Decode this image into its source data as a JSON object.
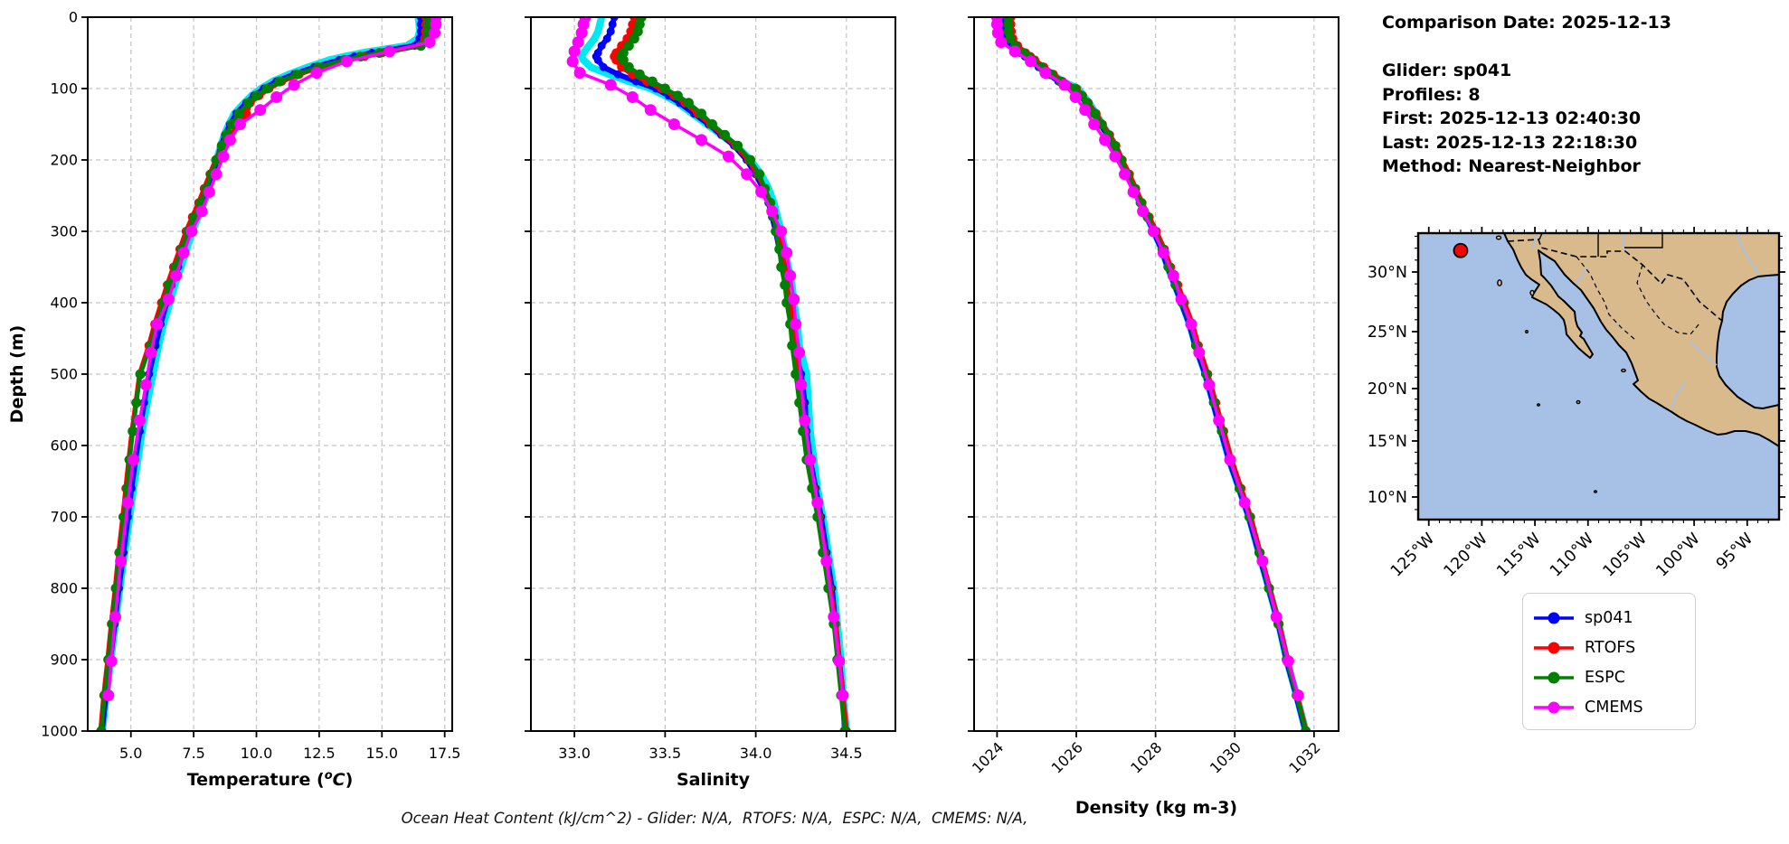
{
  "info": {
    "lines": [
      "Comparison Date: 2025-12-13",
      "",
      "Glider: sp041",
      "Profiles: 8",
      "First: 2025-12-13 02:40:30",
      "Last: 2025-12-13 22:18:30",
      "Method: Nearest-Neighbor"
    ]
  },
  "footer": {
    "text": "Ocean Heat Content (kJ/cm^2) - Glider: N/A,  RTOFS: N/A,  ESPC: N/A,  CMEMS: N/A,"
  },
  "map": {
    "ocean_color": "#a6c1e5",
    "land_color": "#d9ba8c",
    "river_color": "#a6c1e5",
    "lat_ticks": [
      {
        "value": 30,
        "label": "30°N"
      },
      {
        "value": 25,
        "label": "25°N"
      },
      {
        "value": 20,
        "label": "20°N"
      },
      {
        "value": 15,
        "label": "15°N"
      },
      {
        "value": 10,
        "label": "10°N"
      }
    ],
    "lon_ticks": [
      {
        "value": -125,
        "label": "125°W"
      },
      {
        "value": -120,
        "label": "120°W"
      },
      {
        "value": -115,
        "label": "115°W"
      },
      {
        "value": -110,
        "label": "110°W"
      },
      {
        "value": -105,
        "label": "105°W"
      },
      {
        "value": -100,
        "label": "100°W"
      },
      {
        "value": -95,
        "label": "95°W"
      }
    ],
    "extent": {
      "lon_min": -126,
      "lon_max": -92,
      "lat_max": 33.26,
      "lat_min": 8.2
    },
    "marker": {
      "lon": -122.0,
      "lat": 31.8,
      "color": "#ff0000"
    }
  },
  "chart_data": {
    "type": "line",
    "ylabel": "Depth (m)",
    "ylim": [
      0,
      1000
    ],
    "yticks": [
      0,
      100,
      200,
      300,
      400,
      500,
      600,
      700,
      800,
      900,
      1000
    ],
    "grid": true,
    "depths": [
      0,
      10,
      20,
      30,
      40,
      50,
      55,
      60,
      70,
      80,
      90,
      100,
      110,
      120,
      135,
      150,
      165,
      180,
      200,
      220,
      240,
      260,
      280,
      300,
      325,
      350,
      375,
      400,
      430,
      460,
      500,
      540,
      580,
      620,
      660,
      700,
      750,
      800,
      850,
      900,
      950,
      1000
    ],
    "panels": [
      {
        "key": "temperature",
        "xlabel": "Temperature (oC)",
        "xlabel_sup": true,
        "xlim": [
          3.28,
          17.8
        ],
        "xticks": [
          5.0,
          7.5,
          10.0,
          12.5,
          15.0,
          17.5
        ],
        "xtick_labels": [
          "5.0",
          "7.5",
          "10.0",
          "12.5",
          "15.0",
          "17.5"
        ],
        "rotate_ticks": false
      },
      {
        "key": "salinity",
        "xlabel": "Salinity",
        "xlabel_sup": false,
        "xlim": [
          32.76,
          34.77
        ],
        "xticks": [
          33.0,
          33.5,
          34.0,
          34.5
        ],
        "xtick_labels": [
          "33.0",
          "33.5",
          "34.0",
          "34.5"
        ],
        "rotate_ticks": false
      },
      {
        "key": "density",
        "xlabel": "Density (kg m-3)",
        "xlabel_sup": false,
        "xlim": [
          1023.42,
          1032.62
        ],
        "xticks": [
          1024,
          1026,
          1028,
          1030,
          1032
        ],
        "xtick_labels": [
          "1024",
          "1026",
          "1028",
          "1030",
          "1032"
        ],
        "rotate_ticks": true
      }
    ],
    "series": [
      {
        "name": "glider-profiles",
        "color": "#00e8f0",
        "line_width": 8,
        "marker_radius": 4,
        "in_legend": false,
        "temperature": [
          16.45,
          16.48,
          16.5,
          16.42,
          16.0,
          14.2,
          13.5,
          12.9,
          12.05,
          11.3,
          10.65,
          10.18,
          9.8,
          9.52,
          9.12,
          8.9,
          8.72,
          8.58,
          8.42,
          8.28,
          8.1,
          7.92,
          7.68,
          7.45,
          7.22,
          7.0,
          6.75,
          6.55,
          6.3,
          6.1,
          5.88,
          5.65,
          5.45,
          5.28,
          5.1,
          4.95,
          4.75,
          4.56,
          4.38,
          4.2,
          4.02,
          3.86
        ],
        "salinity": [
          33.15,
          33.14,
          33.13,
          33.11,
          33.08,
          33.05,
          33.04,
          33.05,
          33.09,
          33.19,
          33.3,
          33.42,
          33.5,
          33.57,
          33.65,
          33.73,
          33.81,
          33.89,
          33.97,
          34.03,
          34.07,
          34.1,
          34.12,
          34.14,
          34.16,
          34.18,
          34.2,
          34.21,
          34.23,
          34.24,
          34.28,
          34.29,
          34.3,
          34.32,
          34.34,
          34.37,
          34.4,
          34.43,
          34.45,
          34.47,
          34.48,
          34.5
        ],
        "density": [
          1024.2,
          1024.2,
          1024.22,
          1024.26,
          1024.42,
          1024.66,
          1024.78,
          1024.9,
          1025.15,
          1025.4,
          1025.65,
          1026.05,
          1026.18,
          1026.32,
          1026.5,
          1026.65,
          1026.82,
          1026.98,
          1027.12,
          1027.3,
          1027.46,
          1027.61,
          1027.79,
          1027.96,
          1028.16,
          1028.31,
          1028.49,
          1028.66,
          1028.86,
          1029.01,
          1029.26,
          1029.46,
          1029.66,
          1029.86,
          1030.11,
          1030.36,
          1030.61,
          1030.86,
          1031.11,
          1031.31,
          1031.56,
          1031.79
        ]
      },
      {
        "name": "sp041",
        "color": "#0000ff",
        "line_width": 6,
        "marker_radius": 4.5,
        "in_legend": true,
        "temperature": [
          16.55,
          16.55,
          16.55,
          16.5,
          16.3,
          14.6,
          13.9,
          13.3,
          12.3,
          11.5,
          10.8,
          10.3,
          9.9,
          9.6,
          9.2,
          8.95,
          8.75,
          8.6,
          8.42,
          8.25,
          8.05,
          7.85,
          7.6,
          7.35,
          7.1,
          6.88,
          6.62,
          6.42,
          6.18,
          5.98,
          5.72,
          5.52,
          5.35,
          5.18,
          5.02,
          4.88,
          4.7,
          4.52,
          4.35,
          4.18,
          4.0,
          3.85
        ],
        "salinity": [
          33.22,
          33.21,
          33.2,
          33.18,
          33.15,
          33.13,
          33.12,
          33.13,
          33.16,
          33.24,
          33.34,
          33.45,
          33.52,
          33.58,
          33.66,
          33.74,
          33.81,
          33.88,
          33.95,
          34.0,
          34.04,
          34.07,
          34.09,
          34.11,
          34.13,
          34.15,
          34.17,
          34.18,
          34.2,
          34.21,
          34.25,
          34.27,
          34.28,
          34.3,
          34.33,
          34.36,
          34.39,
          34.42,
          34.44,
          34.46,
          34.48,
          34.49
        ],
        "density": [
          1024.15,
          1024.15,
          1024.16,
          1024.2,
          1024.35,
          1024.58,
          1024.7,
          1024.82,
          1025.05,
          1025.3,
          1025.55,
          1025.95,
          1026.1,
          1026.25,
          1026.45,
          1026.6,
          1026.78,
          1026.95,
          1027.1,
          1027.28,
          1027.45,
          1027.6,
          1027.78,
          1027.95,
          1028.15,
          1028.3,
          1028.48,
          1028.65,
          1028.85,
          1029.0,
          1029.25,
          1029.45,
          1029.65,
          1029.85,
          1030.1,
          1030.35,
          1030.6,
          1030.85,
          1031.1,
          1031.3,
          1031.55,
          1031.78
        ]
      },
      {
        "name": "RTOFS",
        "color": "#ff0000",
        "line_width": 5.5,
        "marker_radius": 5,
        "in_legend": true,
        "temperature": [
          16.75,
          16.75,
          16.74,
          16.7,
          16.5,
          15.0,
          14.3,
          13.6,
          12.5,
          11.7,
          11.0,
          10.5,
          10.1,
          9.75,
          9.6,
          9.35,
          8.95,
          8.65,
          8.38,
          8.15,
          7.92,
          7.7,
          7.45,
          7.2,
          6.95,
          6.7,
          6.45,
          6.22,
          5.95,
          5.72,
          5.35,
          5.2,
          5.05,
          4.92,
          4.8,
          4.68,
          4.52,
          4.38,
          4.22,
          4.08,
          3.92,
          3.8
        ],
        "salinity": [
          33.33,
          33.32,
          33.31,
          33.29,
          33.26,
          33.23,
          33.22,
          33.23,
          33.26,
          33.32,
          33.4,
          33.48,
          33.55,
          33.61,
          33.68,
          33.75,
          33.82,
          33.89,
          33.96,
          34.01,
          34.05,
          34.08,
          34.1,
          34.12,
          34.14,
          34.16,
          34.17,
          34.19,
          34.2,
          34.22,
          34.23,
          34.25,
          34.27,
          34.29,
          34.32,
          34.35,
          34.38,
          34.41,
          34.44,
          34.46,
          34.48,
          34.5
        ],
        "density": [
          1024.35,
          1024.35,
          1024.36,
          1024.4,
          1024.52,
          1024.72,
          1024.84,
          1024.95,
          1025.18,
          1025.42,
          1025.65,
          1026.0,
          1026.16,
          1026.3,
          1026.5,
          1026.66,
          1026.84,
          1027.0,
          1027.16,
          1027.34,
          1027.5,
          1027.66,
          1027.84,
          1028.02,
          1028.22,
          1028.38,
          1028.56,
          1028.73,
          1028.93,
          1029.08,
          1029.32,
          1029.52,
          1029.72,
          1029.92,
          1030.16,
          1030.4,
          1030.64,
          1030.88,
          1031.12,
          1031.33,
          1031.57,
          1031.8
        ]
      },
      {
        "name": "ESPC",
        "color": "#008000",
        "line_width": 4.5,
        "marker_radius": 5.5,
        "in_legend": true,
        "temperature": [
          16.85,
          16.85,
          16.84,
          16.8,
          16.55,
          14.9,
          14.15,
          13.5,
          12.45,
          11.62,
          10.92,
          10.42,
          10.0,
          9.68,
          9.3,
          9.02,
          8.8,
          8.62,
          8.4,
          8.2,
          8.0,
          7.78,
          7.52,
          7.28,
          7.02,
          6.78,
          6.52,
          6.3,
          6.02,
          5.78,
          5.38,
          5.22,
          5.08,
          4.95,
          4.85,
          4.72,
          4.55,
          4.4,
          4.25,
          4.1,
          3.95,
          3.82
        ],
        "salinity": [
          33.37,
          33.36,
          33.35,
          33.33,
          33.3,
          33.27,
          33.26,
          33.27,
          33.3,
          33.36,
          33.43,
          33.5,
          33.57,
          33.63,
          33.7,
          33.76,
          33.83,
          33.9,
          33.97,
          34.02,
          34.05,
          34.08,
          34.1,
          34.11,
          34.13,
          34.14,
          34.16,
          34.17,
          34.19,
          34.2,
          34.22,
          34.24,
          34.26,
          34.28,
          34.31,
          34.34,
          34.37,
          34.4,
          34.43,
          34.45,
          34.47,
          34.49
        ],
        "density": [
          1024.28,
          1024.28,
          1024.29,
          1024.33,
          1024.46,
          1024.66,
          1024.78,
          1024.9,
          1025.12,
          1025.36,
          1025.6,
          1025.97,
          1026.13,
          1026.27,
          1026.47,
          1026.63,
          1026.8,
          1026.97,
          1027.13,
          1027.3,
          1027.47,
          1027.63,
          1027.8,
          1027.98,
          1028.18,
          1028.33,
          1028.51,
          1028.68,
          1028.88,
          1029.03,
          1029.28,
          1029.48,
          1029.68,
          1029.88,
          1030.12,
          1030.37,
          1030.62,
          1030.86,
          1031.1,
          1031.31,
          1031.56,
          1031.79
        ]
      },
      {
        "name": "CMEMS",
        "color": "#ff00ff",
        "line_width": 3.5,
        "marker_radius": 6.5,
        "in_legend": true,
        "depths": [
          0,
          10,
          22,
          35,
          48,
          62,
          78,
          95,
          112,
          130,
          150,
          172,
          195,
          220,
          245,
          272,
          300,
          330,
          362,
          395,
          430,
          470,
          515,
          565,
          620,
          680,
          762,
          840,
          902,
          950
        ],
        "temperature": [
          17.15,
          17.15,
          17.1,
          16.9,
          15.3,
          13.6,
          12.4,
          11.5,
          10.8,
          10.15,
          9.35,
          8.95,
          8.68,
          8.4,
          8.12,
          7.82,
          7.42,
          7.1,
          6.8,
          6.5,
          6.05,
          5.8,
          5.6,
          5.35,
          5.1,
          4.88,
          4.6,
          4.38,
          4.22,
          4.1
        ],
        "salinity": [
          33.06,
          33.05,
          33.04,
          33.02,
          33.0,
          32.99,
          33.03,
          33.2,
          33.32,
          33.42,
          33.55,
          33.7,
          33.85,
          33.95,
          34.03,
          34.09,
          34.14,
          34.17,
          34.19,
          34.21,
          34.22,
          34.24,
          34.25,
          34.27,
          34.3,
          34.34,
          34.39,
          34.43,
          34.46,
          34.48
        ],
        "density": [
          1024.0,
          1024.0,
          1024.02,
          1024.1,
          1024.45,
          1024.85,
          1025.22,
          1025.7,
          1025.98,
          1026.22,
          1026.45,
          1026.72,
          1026.98,
          1027.22,
          1027.44,
          1027.68,
          1027.95,
          1028.2,
          1028.45,
          1028.65,
          1028.9,
          1029.1,
          1029.35,
          1029.6,
          1029.88,
          1030.25,
          1030.7,
          1031.05,
          1031.35,
          1031.6
        ]
      }
    ]
  }
}
